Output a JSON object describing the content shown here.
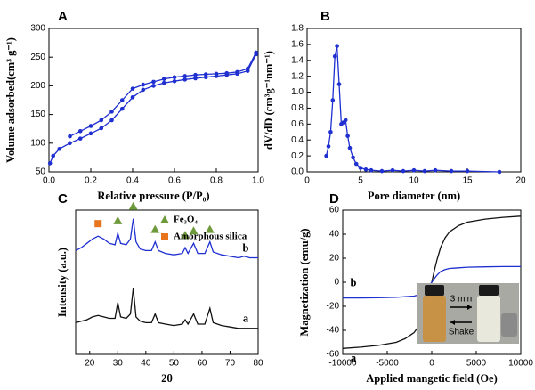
{
  "chart_data": [
    {
      "type": "line",
      "label": "A",
      "xlabel": "Relative pressure (P/P₀)",
      "ylabel": "Volume adsorbed(cm³ g⁻¹)",
      "xlim": [
        0,
        1
      ],
      "ylim": [
        50,
        300
      ],
      "xticks": [
        {
          "value": 0,
          "label": "0.0"
        },
        0.2,
        0.4,
        0.6,
        0.8,
        {
          "value": 1,
          "label": "1.0"
        }
      ],
      "yticks": [
        50,
        100,
        150,
        200,
        250,
        300
      ],
      "marker": "circle",
      "series": [
        {
          "color": "#1f2fd0",
          "x": [
            0.005,
            0.02,
            0.05,
            0.1,
            0.15,
            0.2,
            0.25,
            0.3,
            0.35,
            0.4,
            0.45,
            0.5,
            0.55,
            0.6,
            0.65,
            0.7,
            0.75,
            0.8,
            0.85,
            0.9,
            0.95,
            0.99
          ],
          "values": [
            65,
            78,
            90,
            100,
            108,
            117,
            126,
            140,
            160,
            180,
            193,
            200,
            205,
            208,
            211,
            213,
            215,
            217,
            219,
            221,
            226,
            255
          ]
        },
        {
          "color": "#1f2fd0",
          "x": [
            0.99,
            0.95,
            0.9,
            0.85,
            0.8,
            0.75,
            0.7,
            0.65,
            0.6,
            0.55,
            0.5,
            0.45,
            0.4,
            0.35,
            0.3,
            0.25,
            0.2,
            0.15,
            0.1
          ],
          "values": [
            258,
            230,
            224,
            222,
            221,
            220,
            219,
            217,
            215,
            212,
            207,
            202,
            195,
            175,
            155,
            140,
            130,
            121,
            112
          ]
        }
      ]
    },
    {
      "type": "line",
      "label": "B",
      "xlabel": "Pore diameter (nm)",
      "ylabel": "dV/dD (cm³g⁻¹nm⁻¹)",
      "xlim": [
        0,
        20
      ],
      "ylim": [
        0,
        1.8
      ],
      "xticks": [
        0,
        5,
        10,
        15,
        20
      ],
      "yticks": [
        {
          "value": 0,
          "label": "0.0"
        },
        0.2,
        0.4,
        0.6,
        0.8,
        {
          "value": 1,
          "label": "1.0"
        },
        1.2,
        1.4,
        1.6,
        1.8
      ],
      "marker": "circle",
      "series": [
        {
          "color": "#1f2fd0",
          "x": [
            1.8,
            2.0,
            2.2,
            2.4,
            2.6,
            2.8,
            3.0,
            3.2,
            3.4,
            3.6,
            3.8,
            4.0,
            4.3,
            4.6,
            5,
            5.5,
            6,
            7,
            8,
            9,
            10,
            11,
            12,
            13.5,
            15,
            18
          ],
          "values": [
            0.2,
            0.32,
            0.5,
            0.9,
            1.45,
            1.58,
            1.1,
            0.6,
            0.62,
            0.65,
            0.45,
            0.3,
            0.18,
            0.1,
            0.05,
            0.03,
            0.02,
            0.01,
            0.02,
            0.01,
            0.02,
            0.01,
            0.02,
            0.01,
            0.01,
            0
          ]
        }
      ]
    },
    {
      "type": "line",
      "label": "C",
      "xlabel": "2θ",
      "ylabel": "Intensity (a.u.)",
      "xlim": [
        15,
        80
      ],
      "ylim": [
        0,
        100
      ],
      "xticks": [
        20,
        30,
        40,
        50,
        60,
        70,
        80
      ],
      "x": [
        15,
        17,
        19,
        21,
        23,
        25,
        27,
        29,
        30,
        31,
        33,
        34.5,
        35.5,
        36.5,
        38,
        40,
        42,
        43.3,
        44.5,
        47,
        50,
        53,
        54,
        55,
        57,
        58.5,
        61,
        62.8,
        64,
        67,
        70,
        73,
        75,
        77,
        80
      ],
      "series": [
        {
          "color": "#1f2fd0",
          "label": "b",
          "values": [
            72,
            74,
            77,
            80,
            82,
            80,
            77,
            76,
            84,
            77,
            76,
            80,
            94,
            78,
            73,
            72,
            72,
            78,
            72,
            70,
            69,
            70,
            74,
            70,
            77,
            70,
            70,
            78,
            71,
            69,
            68,
            67,
            68,
            67,
            67
          ]
        },
        {
          "color": "#111111",
          "label": "a",
          "values": [
            22,
            23,
            24,
            26,
            27,
            26,
            25,
            25,
            36,
            26,
            25,
            28,
            46,
            26,
            23,
            22,
            22,
            28,
            22,
            21,
            20,
            21,
            24,
            21,
            28,
            21,
            21,
            32,
            22,
            20,
            19,
            18,
            18,
            18,
            18
          ]
        }
      ],
      "marker_sets": [
        {
          "name": "Fe₃O₄",
          "color": "#6f9a3c",
          "shape": "triangle",
          "x": [
            30,
            35.5,
            43.3,
            54,
            57,
            62.8
          ]
        },
        {
          "name": "Amorphous silica",
          "color": "#e8741e",
          "shape": "square",
          "x": [
            23
          ]
        }
      ]
    },
    {
      "type": "line",
      "label": "D",
      "xlabel": "Applied mangetic field (Oe)",
      "ylabel": "Magnetization (emu/g)",
      "xlim": [
        -10000,
        10000
      ],
      "ylim": [
        -60,
        60
      ],
      "xticks": [
        -10000,
        -5000,
        0,
        5000,
        10000
      ],
      "yticks": [
        -60,
        -40,
        -20,
        0,
        20,
        40,
        60
      ],
      "x": [
        -10000,
        -8000,
        -6000,
        -4000,
        -3000,
        -2000,
        -1500,
        -1000,
        -600,
        -300,
        0,
        300,
        600,
        1000,
        1500,
        2000,
        3000,
        4000,
        6000,
        8000,
        10000
      ],
      "series": [
        {
          "color": "#111111",
          "label": "a",
          "values": [
            -55,
            -54,
            -52.5,
            -50,
            -47,
            -42,
            -37,
            -29,
            -19,
            -10,
            0,
            10,
            19,
            29,
            37,
            42,
            47,
            50,
            52.5,
            54,
            55
          ]
        },
        {
          "color": "#1f2fd0",
          "label": "b",
          "values": [
            -13,
            -13,
            -12.8,
            -12.5,
            -12,
            -11.5,
            -10.5,
            -9,
            -6,
            -3,
            0,
            3,
            6,
            9,
            10.5,
            11.5,
            12,
            12.5,
            12.8,
            13,
            13
          ]
        }
      ],
      "inset_labels": [
        "3 min",
        "Shake"
      ]
    }
  ]
}
